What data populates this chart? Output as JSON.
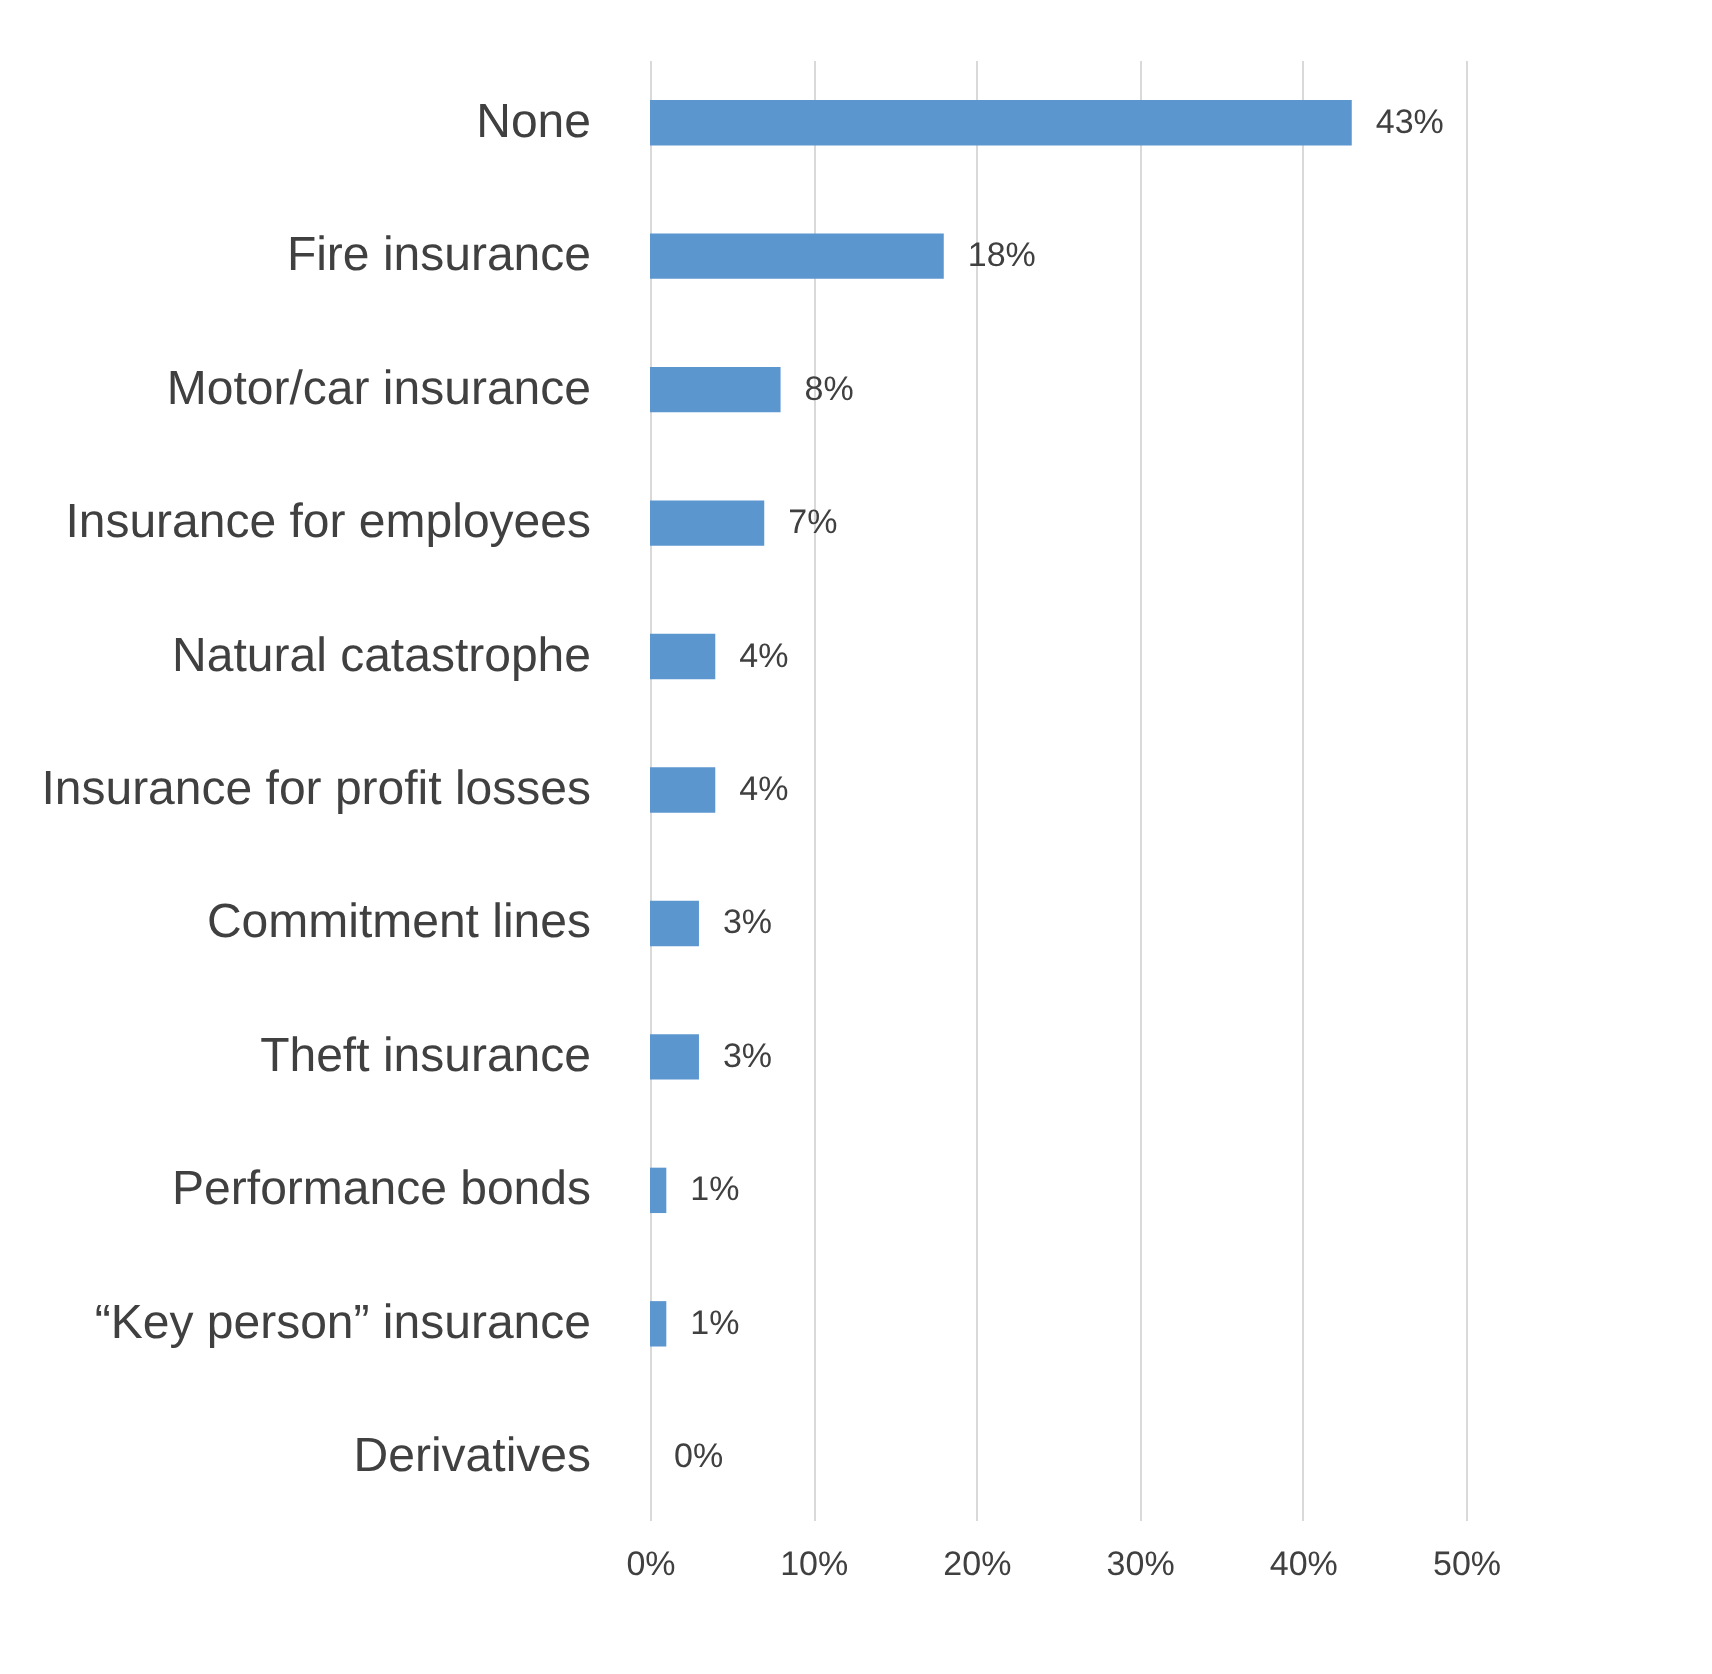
{
  "chart_data": {
    "type": "bar",
    "orientation": "horizontal",
    "categories": [
      "None",
      "Fire insurance",
      "Motor/car insurance",
      "Insurance for employees",
      "Natural catastrophe",
      "Insurance for profit losses",
      "Commitment lines",
      "Theft insurance",
      "Performance bonds",
      "“Key person” insurance",
      "Derivatives"
    ],
    "values": [
      43,
      18,
      8,
      7,
      4,
      4,
      3,
      3,
      1,
      1,
      0
    ],
    "value_labels": [
      "43%",
      "18%",
      "8%",
      "7%",
      "4%",
      "4%",
      "3%",
      "3%",
      "1%",
      "1%",
      "0%"
    ],
    "color": "#5b96cf",
    "xlim": [
      0,
      50
    ],
    "xticks": [
      {
        "value": 0,
        "label": "0%"
      },
      {
        "value": 10,
        "label": "10%"
      },
      {
        "value": 20,
        "label": "20%"
      },
      {
        "value": 30,
        "label": "30%"
      },
      {
        "value": 40,
        "label": "40%"
      },
      {
        "value": 50,
        "label": "50%"
      }
    ],
    "grid": "x"
  }
}
